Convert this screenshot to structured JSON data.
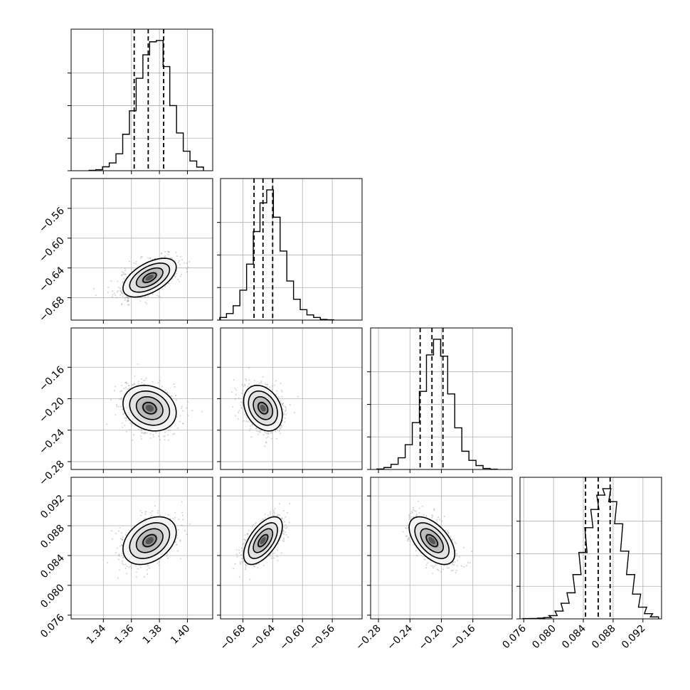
{
  "chart_data": {
    "type": "corner",
    "grid": true,
    "parameters": [
      {
        "ticks": [
          1.34,
          1.36,
          1.38,
          1.4
        ],
        "tick_labels": [
          "1.34",
          "1.36",
          "1.38",
          "1.40"
        ],
        "range": [
          1.317,
          1.418
        ],
        "quantiles": [
          1.362,
          1.372,
          1.383
        ],
        "hist": {
          "bins": [
            1.3298,
            1.3346,
            1.3394,
            1.3442,
            1.349,
            1.3538,
            1.3586,
            1.3634,
            1.3682,
            1.373,
            1.3778,
            1.3826,
            1.3874,
            1.3922,
            1.397,
            1.4018,
            1.4066
          ],
          "counts": [
            0.003,
            0.008,
            0.03,
            0.06,
            0.13,
            0.28,
            0.46,
            0.71,
            0.89,
            0.99,
            1.0,
            0.8,
            0.5,
            0.29,
            0.15,
            0.075,
            0.028
          ]
        }
      },
      {
        "ticks": [
          -0.68,
          -0.64,
          -0.6,
          -0.56
        ],
        "tick_labels": [
          "−0.68",
          "−0.64",
          "−0.60",
          "−0.56"
        ],
        "range": [
          -0.71,
          -0.52
        ],
        "quantiles": [
          -0.665,
          -0.653,
          -0.64
        ],
        "hist": {
          "bins": [
            -0.711,
            -0.702,
            -0.693,
            -0.684,
            -0.675,
            -0.666,
            -0.657,
            -0.648,
            -0.639,
            -0.63,
            -0.621,
            -0.612,
            -0.603,
            -0.594,
            -0.585,
            -0.576,
            -0.567
          ],
          "counts": [
            0.02,
            0.05,
            0.11,
            0.23,
            0.43,
            0.68,
            0.9,
            1.0,
            0.79,
            0.53,
            0.3,
            0.16,
            0.08,
            0.04,
            0.02,
            0.005,
            0.002
          ]
        }
      },
      {
        "ticks": [
          -0.28,
          -0.24,
          -0.2,
          -0.16
        ],
        "tick_labels": [
          "−0.28",
          "−0.24",
          "−0.20",
          "−0.16"
        ],
        "range": [
          -0.29,
          -0.11
        ],
        "quantiles": [
          -0.227,
          -0.212,
          -0.198
        ],
        "hist": {
          "bins": [
            -0.282,
            -0.273,
            -0.264,
            -0.255,
            -0.246,
            -0.237,
            -0.228,
            -0.219,
            -0.21,
            -0.201,
            -0.192,
            -0.183,
            -0.174,
            -0.165,
            -0.156,
            -0.147,
            -0.138
          ],
          "counts": [
            0.004,
            0.015,
            0.04,
            0.09,
            0.19,
            0.36,
            0.6,
            0.88,
            1.0,
            0.87,
            0.58,
            0.32,
            0.14,
            0.07,
            0.03,
            0.008,
            0.002
          ]
        }
      },
      {
        "ticks": [
          0.076,
          0.08,
          0.084,
          0.088,
          0.092
        ],
        "tick_labels": [
          "0.076",
          "0.080",
          "0.084",
          "0.088",
          "0.092"
        ],
        "range": [
          0.0755,
          0.0945
        ],
        "quantiles": [
          0.0843,
          0.086,
          0.0876
        ],
        "hist": {
          "bins": [
            0.0759,
            0.077,
            0.0778,
            0.0786,
            0.0794,
            0.0802,
            0.081,
            0.0818,
            0.0826,
            0.0834,
            0.0842,
            0.085,
            0.0858,
            0.0866,
            0.0874,
            0.0882,
            0.089,
            0.0898,
            0.0906,
            0.0914,
            0.0922,
            0.093
          ],
          "counts": [
            0.002,
            0.003,
            0.006,
            0.01,
            0.025,
            0.06,
            0.12,
            0.2,
            0.34,
            0.51,
            0.7,
            0.84,
            0.95,
            1.0,
            0.9,
            0.73,
            0.52,
            0.34,
            0.19,
            0.09,
            0.04,
            0.015
          ]
        }
      }
    ],
    "pairs": [
      {
        "row": 1,
        "col": 0,
        "mean": [
          1.373,
          -0.653
        ],
        "sd": [
          0.0095,
          0.013
        ],
        "rho": 0.55
      },
      {
        "row": 2,
        "col": 0,
        "mean": [
          1.373,
          -0.212
        ],
        "sd": [
          0.0095,
          0.0145
        ],
        "rho": -0.2
      },
      {
        "row": 2,
        "col": 1,
        "mean": [
          -0.653,
          -0.212
        ],
        "sd": [
          0.013,
          0.0145
        ],
        "rho": -0.3
      },
      {
        "row": 3,
        "col": 0,
        "mean": [
          1.373,
          0.086
        ],
        "sd": [
          0.0095,
          0.0016
        ],
        "rho": 0.35
      },
      {
        "row": 3,
        "col": 1,
        "mean": [
          -0.653,
          0.086
        ],
        "sd": [
          0.013,
          0.0016
        ],
        "rho": 0.6
      },
      {
        "row": 3,
        "col": 2,
        "mean": [
          -0.212,
          0.086
        ],
        "sd": [
          0.0145,
          0.0016
        ],
        "rho": -0.55
      }
    ],
    "contour_levels_sigma": [
      0.5,
      1.0,
      1.5,
      2.0
    ]
  }
}
